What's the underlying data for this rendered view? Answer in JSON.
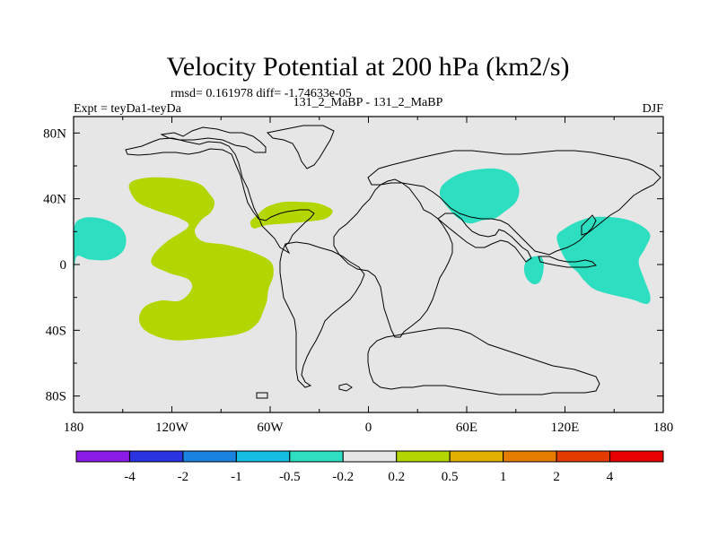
{
  "chart_data": {
    "type": "map",
    "title": "Velocity Potential at 200 hPa (km2/s)",
    "stats": "rmsd= 0.161978 diff= -1.74633e-05",
    "left_label": "Expt = teyDa1-teyDa",
    "center_label": "131_2_MaBP - 131_2_MaBP",
    "right_label": "DJF",
    "x_range": [
      -180,
      180
    ],
    "y_range": [
      -90,
      90
    ],
    "x_ticks": [
      {
        "value": -180,
        "label": "180"
      },
      {
        "value": -120,
        "label": "120W"
      },
      {
        "value": -60,
        "label": "60W"
      },
      {
        "value": 0,
        "label": "0"
      },
      {
        "value": 60,
        "label": "60E"
      },
      {
        "value": 120,
        "label": "120E"
      },
      {
        "value": 180,
        "label": "180"
      }
    ],
    "y_ticks": [
      {
        "value": 80,
        "label": "80N"
      },
      {
        "value": 40,
        "label": "40N"
      },
      {
        "value": 0,
        "label": "0"
      },
      {
        "value": -40,
        "label": "40S"
      },
      {
        "value": -80,
        "label": "80S"
      }
    ],
    "colorbar": {
      "colors": [
        "#8a1ce6",
        "#2a34e0",
        "#1a82df",
        "#15bde3",
        "#2ddfc0",
        "#e6e6e6",
        "#b3d600",
        "#dfb000",
        "#e77d00",
        "#e33b00",
        "#e60000"
      ],
      "labels": [
        "-4",
        "-2",
        "-1",
        "-0.5",
        "-0.2",
        "0.2",
        "0.5",
        "1",
        "2",
        "4"
      ]
    },
    "background_color": "#e6e6e6",
    "anomalies": [
      {
        "category": "0.2 to 0.5",
        "color": "#b3d600",
        "region": "eastern Pacific / Americas",
        "points": [
          [
            -145,
            50
          ],
          [
            -140,
            52
          ],
          [
            -130,
            53
          ],
          [
            -115,
            52
          ],
          [
            -103,
            49
          ],
          [
            -97,
            43
          ],
          [
            -94,
            38
          ],
          [
            -96,
            32
          ],
          [
            -102,
            27
          ],
          [
            -106,
            20
          ],
          [
            -101,
            14
          ],
          [
            -87,
            12
          ],
          [
            -72,
            8
          ],
          [
            -60,
            2
          ],
          [
            -58,
            -6
          ],
          [
            -61,
            -15
          ],
          [
            -62,
            -22
          ],
          [
            -64,
            -28
          ],
          [
            -68,
            -36
          ],
          [
            -78,
            -42
          ],
          [
            -100,
            -45
          ],
          [
            -120,
            -46
          ],
          [
            -135,
            -41
          ],
          [
            -140,
            -34
          ],
          [
            -137,
            -26
          ],
          [
            -127,
            -22
          ],
          [
            -115,
            -22
          ],
          [
            -108,
            -15
          ],
          [
            -110,
            -9
          ],
          [
            -122,
            -5
          ],
          [
            -132,
            0
          ],
          [
            -131,
            6
          ],
          [
            -123,
            14
          ],
          [
            -110,
            23
          ],
          [
            -115,
            28
          ],
          [
            -130,
            33
          ],
          [
            -141,
            38
          ],
          [
            -146,
            46
          ]
        ]
      },
      {
        "category": "0.2 to 0.5",
        "color": "#b3d600",
        "region": "North Atlantic",
        "points": [
          [
            -68,
            30
          ],
          [
            -62,
            35
          ],
          [
            -52,
            38
          ],
          [
            -40,
            38
          ],
          [
            -30,
            37
          ],
          [
            -22,
            33
          ],
          [
            -26,
            28
          ],
          [
            -38,
            26
          ],
          [
            -50,
            25
          ],
          [
            -62,
            24
          ],
          [
            -70,
            22
          ],
          [
            -72,
            26
          ]
        ]
      },
      {
        "category": "-0.5 to -0.2",
        "color": "#2ddfc0",
        "region": "central Pacific",
        "points": [
          [
            -180,
            21
          ],
          [
            -175,
            28
          ],
          [
            -163,
            28
          ],
          [
            -152,
            23
          ],
          [
            -148,
            16
          ],
          [
            -150,
            8
          ],
          [
            -158,
            3
          ],
          [
            -170,
            3
          ],
          [
            -178,
            5
          ],
          [
            -180,
            -5
          ]
        ]
      },
      {
        "category": "-0.5 to -0.2",
        "color": "#2ddfc0",
        "region": "Asia",
        "points": [
          [
            45,
            48
          ],
          [
            55,
            55
          ],
          [
            68,
            58
          ],
          [
            80,
            58
          ],
          [
            88,
            54
          ],
          [
            92,
            46
          ],
          [
            90,
            38
          ],
          [
            83,
            32
          ],
          [
            77,
            28
          ],
          [
            70,
            27
          ],
          [
            62,
            25
          ],
          [
            55,
            28
          ],
          [
            49,
            34
          ],
          [
            44,
            41
          ]
        ]
      },
      {
        "category": "-0.5 to -0.2",
        "color": "#2ddfc0",
        "region": "western Pacific",
        "points": [
          [
            115,
            16
          ],
          [
            120,
            22
          ],
          [
            130,
            27
          ],
          [
            140,
            29
          ],
          [
            155,
            28
          ],
          [
            166,
            24
          ],
          [
            172,
            18
          ],
          [
            169,
            10
          ],
          [
            165,
            2
          ],
          [
            168,
            -8
          ],
          [
            172,
            -19
          ],
          [
            170,
            -24
          ],
          [
            160,
            -21
          ],
          [
            140,
            -16
          ],
          [
            132,
            -10
          ],
          [
            128,
            -5
          ],
          [
            121,
            2
          ]
        ]
      },
      {
        "category": "-0.5 to -0.2",
        "color": "#2ddfc0",
        "region": "Maritime Continent",
        "points": [
          [
            97,
            3
          ],
          [
            102,
            5
          ],
          [
            106,
            4
          ],
          [
            107,
            -2
          ],
          [
            105,
            -10
          ],
          [
            101,
            -12
          ],
          [
            97,
            -9
          ],
          [
            95,
            -3
          ]
        ]
      }
    ]
  }
}
